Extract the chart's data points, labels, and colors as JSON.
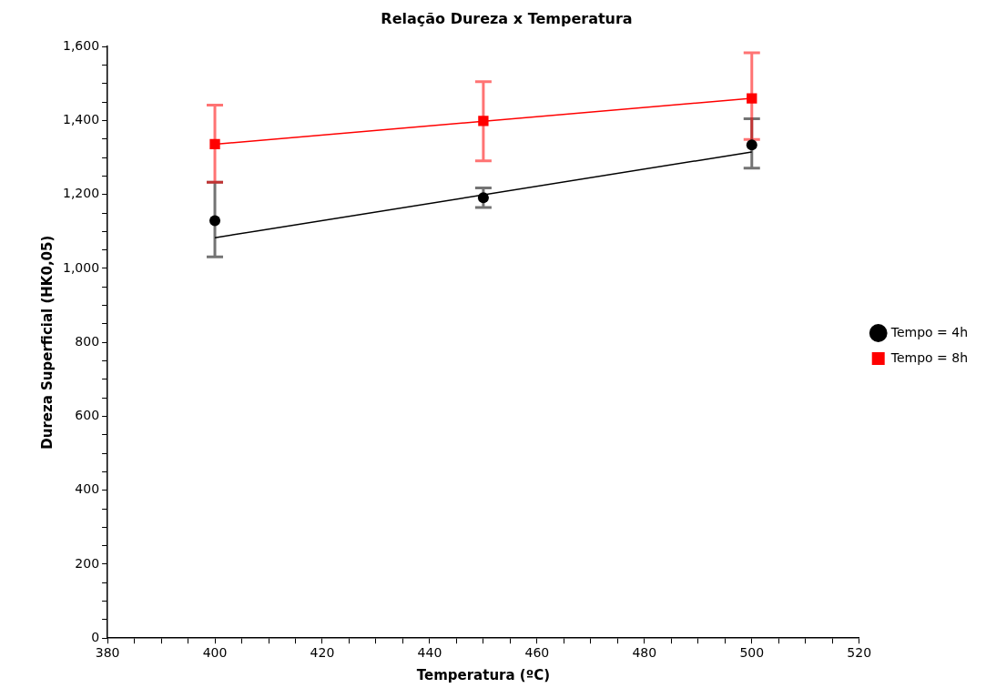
{
  "chart_data": {
    "type": "scatter",
    "title": "Relação Dureza x Temperatura",
    "xlabel": "Temperatura (ºC)",
    "ylabel": "Dureza Superficial (HK0,05)",
    "xlim": [
      380,
      520
    ],
    "ylim": [
      0,
      1600
    ],
    "xticks": [
      380,
      {
        "value": 385,
        "label": null
      },
      {
        "value": 390,
        "label": null
      },
      {
        "value": 395,
        "label": null
      },
      400,
      {
        "value": 405,
        "label": null
      },
      {
        "value": 410,
        "label": null
      },
      {
        "value": 415,
        "label": null
      },
      420,
      {
        "value": 425,
        "label": null
      },
      {
        "value": 430,
        "label": null
      },
      {
        "value": 435,
        "label": null
      },
      440,
      {
        "value": 445,
        "label": null
      },
      {
        "value": 450,
        "label": null
      },
      {
        "value": 455,
        "label": null
      },
      460,
      {
        "value": 465,
        "label": null
      },
      {
        "value": 470,
        "label": null
      },
      {
        "value": 475,
        "label": null
      },
      480,
      {
        "value": 485,
        "label": null
      },
      {
        "value": 490,
        "label": null
      },
      {
        "value": 495,
        "label": null
      },
      500,
      {
        "value": 505,
        "label": null
      },
      {
        "value": 510,
        "label": null
      },
      {
        "value": 515,
        "label": null
      },
      520
    ],
    "yticks": [
      0,
      {
        "value": 50,
        "label": null
      },
      {
        "value": 100,
        "label": null
      },
      {
        "value": 150,
        "label": null
      },
      200,
      {
        "value": 250,
        "label": null
      },
      {
        "value": 300,
        "label": null
      },
      {
        "value": 350,
        "label": null
      },
      400,
      {
        "value": 450,
        "label": null
      },
      {
        "value": 500,
        "label": null
      },
      {
        "value": 550,
        "label": null
      },
      600,
      {
        "value": 650,
        "label": null
      },
      {
        "value": 700,
        "label": null
      },
      {
        "value": 750,
        "label": null
      },
      800,
      {
        "value": 850,
        "label": null
      },
      {
        "value": 900,
        "label": null
      },
      {
        "value": 950,
        "label": null
      },
      {
        "value": 1000,
        "label": "1,000"
      },
      {
        "value": 1050,
        "label": null
      },
      {
        "value": 1100,
        "label": null
      },
      {
        "value": 1150,
        "label": null
      },
      {
        "value": 1200,
        "label": "1,200"
      },
      {
        "value": 1250,
        "label": null
      },
      {
        "value": 1300,
        "label": null
      },
      {
        "value": 1350,
        "label": null
      },
      {
        "value": 1400,
        "label": "1,400"
      },
      {
        "value": 1450,
        "label": null
      },
      {
        "value": 1500,
        "label": null
      },
      {
        "value": 1550,
        "label": null
      },
      {
        "value": 1600,
        "label": "1,600"
      }
    ],
    "grid": false,
    "legend": "right",
    "series": [
      {
        "name": "Tempo = 4h",
        "type": "scatter",
        "marker": "circle",
        "color": "#000000",
        "x": [
          400,
          450,
          500
        ],
        "values": [
          1129,
          1191,
          1334
        ],
        "errors": [
          [
            1031,
            1233
          ],
          [
            1165,
            1218
          ],
          [
            1271,
            1405
          ]
        ]
      },
      {
        "name": "Tempo = 8h",
        "type": "scatter",
        "marker": "square",
        "color": "#ff0000",
        "x": [
          400,
          450,
          500
        ],
        "values": [
          1336,
          1399,
          1460
        ],
        "errors": [
          [
            1233,
            1442
          ],
          [
            1291,
            1505
          ],
          [
            1349,
            1583
          ]
        ]
      },
      {
        "type": "line",
        "marker": "none",
        "color": "#000000",
        "x": [
          400,
          500
        ],
        "values": [
          1083,
          1315
        ]
      },
      {
        "type": "line",
        "marker": "none",
        "color": "#ff0000",
        "x": [
          400,
          500
        ],
        "values": [
          1336,
          1460
        ]
      }
    ]
  }
}
